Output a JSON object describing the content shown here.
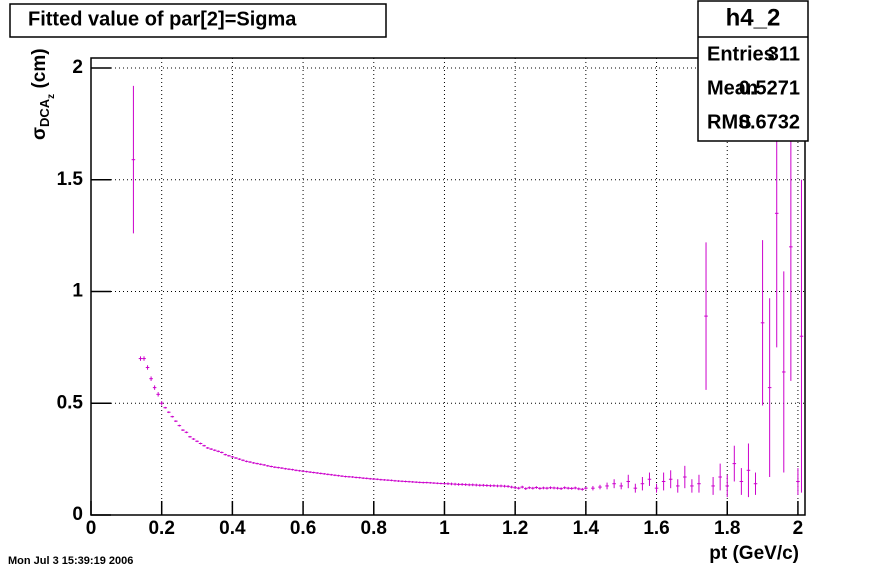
{
  "chart_data": {
    "type": "errorbar",
    "title": "Fitted value of par[2]=Sigma",
    "x_label": "pt (GeV/c)",
    "y_label": {
      "symbol": "σ",
      "sub": "DCA",
      "subsub": "z",
      "unit": " (cm)"
    },
    "timestamp": "Mon Jul  3 15:39:19 2006",
    "stats": {
      "name": "h4_2",
      "rows": [
        [
          "Entries",
          "311"
        ],
        [
          "Mean",
          "0.5271"
        ],
        [
          "RMS",
          "0.6732"
        ]
      ]
    },
    "color": "#cc00cc",
    "xerr": 0.005,
    "xlim": [
      0,
      2.02
    ],
    "ylim": [
      0,
      2.045
    ],
    "xticks": [
      0,
      0.2,
      0.4,
      0.6,
      0.8,
      1,
      1.2,
      1.4,
      1.6,
      1.8,
      2
    ],
    "yticks": [
      0,
      0.5,
      1,
      1.5,
      2
    ],
    "grid": true,
    "x": [
      0.12,
      0.14,
      0.15,
      0.16,
      0.17,
      0.18,
      0.19,
      0.2,
      0.21,
      0.22,
      0.23,
      0.24,
      0.25,
      0.26,
      0.27,
      0.28,
      0.29,
      0.3,
      0.31,
      0.32,
      0.33,
      0.34,
      0.35,
      0.36,
      0.37,
      0.38,
      0.39,
      0.4,
      0.41,
      0.42,
      0.43,
      0.44,
      0.45,
      0.46,
      0.47,
      0.48,
      0.49,
      0.5,
      0.51,
      0.52,
      0.53,
      0.54,
      0.55,
      0.56,
      0.57,
      0.58,
      0.59,
      0.6,
      0.61,
      0.62,
      0.63,
      0.64,
      0.65,
      0.66,
      0.67,
      0.68,
      0.69,
      0.7,
      0.71,
      0.72,
      0.73,
      0.74,
      0.75,
      0.76,
      0.77,
      0.78,
      0.79,
      0.8,
      0.81,
      0.82,
      0.83,
      0.84,
      0.85,
      0.86,
      0.87,
      0.88,
      0.89,
      0.9,
      0.91,
      0.92,
      0.93,
      0.94,
      0.95,
      0.96,
      0.97,
      0.98,
      0.99,
      1,
      1.01,
      1.02,
      1.03,
      1.04,
      1.05,
      1.06,
      1.07,
      1.08,
      1.09,
      1.1,
      1.11,
      1.12,
      1.13,
      1.14,
      1.15,
      1.16,
      1.17,
      1.18,
      1.19,
      1.2,
      1.21,
      1.22,
      1.23,
      1.24,
      1.25,
      1.26,
      1.27,
      1.28,
      1.29,
      1.3,
      1.31,
      1.32,
      1.33,
      1.34,
      1.35,
      1.36,
      1.37,
      1.38,
      1.39,
      1.4,
      1.42,
      1.44,
      1.46,
      1.48,
      1.5,
      1.52,
      1.54,
      1.56,
      1.58,
      1.6,
      1.62,
      1.64,
      1.66,
      1.68,
      1.7,
      1.72,
      1.74,
      1.76,
      1.78,
      1.8,
      1.82,
      1.84,
      1.86,
      1.88,
      1.9,
      1.92,
      1.94,
      1.96,
      1.98,
      2,
      2.01
    ],
    "values": [
      1.59,
      0.7,
      0.7,
      0.66,
      0.61,
      0.57,
      0.54,
      0.5,
      0.48,
      0.46,
      0.44,
      0.42,
      0.4,
      0.38,
      0.37,
      0.35,
      0.34,
      0.33,
      0.32,
      0.31,
      0.3,
      0.295,
      0.29,
      0.285,
      0.28,
      0.27,
      0.265,
      0.26,
      0.255,
      0.25,
      0.245,
      0.24,
      0.237,
      0.233,
      0.23,
      0.227,
      0.224,
      0.22,
      0.217,
      0.214,
      0.212,
      0.21,
      0.207,
      0.205,
      0.203,
      0.2,
      0.198,
      0.196,
      0.194,
      0.192,
      0.19,
      0.188,
      0.186,
      0.184,
      0.182,
      0.18,
      0.178,
      0.176,
      0.174,
      0.172,
      0.171,
      0.17,
      0.168,
      0.167,
      0.165,
      0.164,
      0.162,
      0.161,
      0.16,
      0.158,
      0.157,
      0.156,
      0.155,
      0.153,
      0.152,
      0.151,
      0.15,
      0.149,
      0.148,
      0.147,
      0.146,
      0.145,
      0.145,
      0.144,
      0.143,
      0.142,
      0.141,
      0.14,
      0.14,
      0.139,
      0.138,
      0.137,
      0.137,
      0.136,
      0.135,
      0.135,
      0.134,
      0.133,
      0.133,
      0.132,
      0.131,
      0.131,
      0.13,
      0.13,
      0.129,
      0.128,
      0.125,
      0.122,
      0.12,
      0.125,
      0.118,
      0.122,
      0.12,
      0.123,
      0.119,
      0.121,
      0.12,
      0.122,
      0.121,
      0.12,
      0.118,
      0.122,
      0.12,
      0.119,
      0.121,
      0.117,
      0.115,
      0.12,
      0.12,
      0.125,
      0.13,
      0.14,
      0.13,
      0.15,
      0.12,
      0.14,
      0.16,
      0.12,
      0.15,
      0.16,
      0.13,
      0.17,
      0.13,
      0.14,
      0.89,
      0.13,
      0.17,
      0.13,
      0.23,
      0.15,
      0.2,
      0.14,
      0.86,
      0.57,
      1.35,
      0.64,
      1.2,
      0.15,
      0.8
    ],
    "errors": [
      0.33,
      0.01,
      0.01,
      0.01,
      0.01,
      0.01,
      0.01,
      0.01,
      0.004,
      0.004,
      0.004,
      0.004,
      0.004,
      0.004,
      0.004,
      0.004,
      0.004,
      0.004,
      0.004,
      0.004,
      0.004,
      0.004,
      0.004,
      0.004,
      0.004,
      0.004,
      0.004,
      0.004,
      0.004,
      0.004,
      0.004,
      0.004,
      0.004,
      0.004,
      0.004,
      0.004,
      0.004,
      0.004,
      0.004,
      0.004,
      0.004,
      0.004,
      0.004,
      0.004,
      0.004,
      0.004,
      0.004,
      0.004,
      0.004,
      0.004,
      0.004,
      0.004,
      0.004,
      0.004,
      0.004,
      0.004,
      0.004,
      0.004,
      0.004,
      0.004,
      0.004,
      0.004,
      0.004,
      0.004,
      0.004,
      0.004,
      0.004,
      0.004,
      0.004,
      0.004,
      0.004,
      0.004,
      0.004,
      0.004,
      0.004,
      0.004,
      0.004,
      0.004,
      0.004,
      0.004,
      0.004,
      0.004,
      0.004,
      0.004,
      0.004,
      0.004,
      0.004,
      0.004,
      0.006,
      0.006,
      0.006,
      0.006,
      0.006,
      0.006,
      0.006,
      0.006,
      0.006,
      0.006,
      0.006,
      0.006,
      0.006,
      0.006,
      0.006,
      0.006,
      0.006,
      0.006,
      0.006,
      0.006,
      0.006,
      0.006,
      0.006,
      0.006,
      0.006,
      0.006,
      0.006,
      0.006,
      0.006,
      0.006,
      0.006,
      0.006,
      0.006,
      0.006,
      0.006,
      0.006,
      0.006,
      0.006,
      0.006,
      0.006,
      0.01,
      0.01,
      0.015,
      0.02,
      0.015,
      0.03,
      0.02,
      0.03,
      0.03,
      0.02,
      0.04,
      0.04,
      0.03,
      0.05,
      0.03,
      0.04,
      0.33,
      0.04,
      0.06,
      0.05,
      0.08,
      0.06,
      0.12,
      0.05,
      0.37,
      0.4,
      0.6,
      0.45,
      0.6,
      0.06,
      0.7
    ]
  }
}
